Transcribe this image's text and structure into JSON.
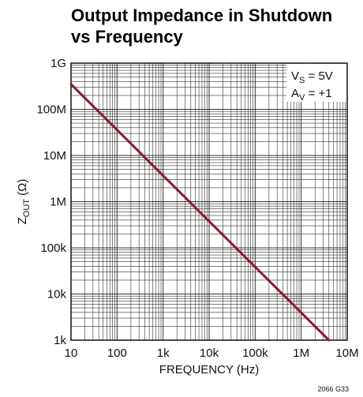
{
  "chart_data": {
    "type": "line",
    "title_line1": "Output Impedance in Shutdown",
    "title_line2": "vs Frequency",
    "xlabel": "FREQUENCY (Hz)",
    "ylabel_main": "Z",
    "ylabel_sub": "OUT",
    "ylabel_unit": "(Ω)",
    "x_scale": "log",
    "y_scale": "log",
    "xlim": [
      10,
      10000000
    ],
    "ylim": [
      1000,
      1000000000
    ],
    "grid": true,
    "x_ticks": [
      {
        "value": 10,
        "label": "10"
      },
      {
        "value": 100,
        "label": "100"
      },
      {
        "value": 1000,
        "label": "1k"
      },
      {
        "value": 10000,
        "label": "10k"
      },
      {
        "value": 100000,
        "label": "100k"
      },
      {
        "value": 1000000,
        "label": "1M"
      },
      {
        "value": 10000000,
        "label": "10M"
      }
    ],
    "y_ticks": [
      {
        "value": 1000,
        "label": "1k"
      },
      {
        "value": 10000,
        "label": "10k"
      },
      {
        "value": 100000,
        "label": "100k"
      },
      {
        "value": 1000000,
        "label": "1M"
      },
      {
        "value": 10000000,
        "label": "10M"
      },
      {
        "value": 100000000,
        "label": "100M"
      },
      {
        "value": 1000000000,
        "label": "1G"
      }
    ],
    "annotation": {
      "line1_main": "V",
      "line1_sub": "S",
      "line1_rest": " = 5V",
      "line2_main": "A",
      "line2_sub": "V",
      "line2_rest": " = +1"
    },
    "series": [
      {
        "color": "#8b1a2b",
        "x": [
          10,
          4000000
        ],
        "y": [
          350000000,
          1000
        ]
      }
    ],
    "figure_id": "2066 G33"
  }
}
